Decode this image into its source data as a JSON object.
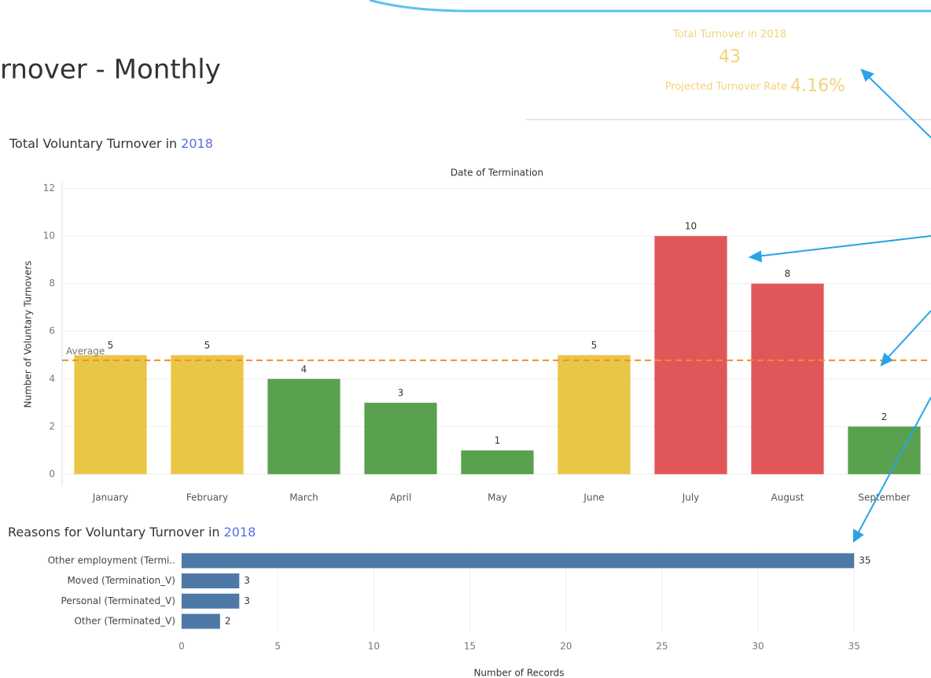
{
  "dashboard_title": "rnover - Monthly",
  "kpi": {
    "total_label": "Total Turnover in 2018",
    "total_value": "43",
    "rate_label": "Projected Turnover Rate",
    "rate_value": "4.16%"
  },
  "chart_data": [
    {
      "type": "bar",
      "title": "Total Voluntary Turnover in",
      "title_highlight": "2018",
      "x_label": "Date of Termination",
      "y_label": "Number of Voluntary Turnovers",
      "categories": [
        "January",
        "February",
        "March",
        "April",
        "May",
        "June",
        "July",
        "August",
        "September"
      ],
      "values": [
        5,
        5,
        4,
        3,
        1,
        5,
        10,
        8,
        2
      ],
      "colors": [
        "#e9c646",
        "#e9c646",
        "#59a14f",
        "#59a14f",
        "#59a14f",
        "#e9c646",
        "#e15759",
        "#e15759",
        "#59a14f"
      ],
      "average": 4.78,
      "average_label": "Average",
      "average_color": "#f28e2b",
      "ylim": [
        -0.5,
        12.25
      ],
      "yticks": [
        0,
        2,
        4,
        6,
        8,
        10,
        12
      ],
      "grid": true
    },
    {
      "type": "hbar",
      "title": "Reasons for Voluntary Turnover in",
      "title_highlight": "2018",
      "x_label": "Number of Records",
      "categories": [
        "Other employment (Termi..",
        "Moved (Termination_V)",
        "Personal (Terminated_V)",
        "Other (Terminated_V)"
      ],
      "values": [
        35,
        3,
        3,
        2
      ],
      "color": "#4e79a7",
      "xlim": [
        0,
        39
      ],
      "xticks": [
        0,
        5,
        10,
        15,
        20,
        25,
        30,
        35
      ],
      "grid": true
    }
  ]
}
